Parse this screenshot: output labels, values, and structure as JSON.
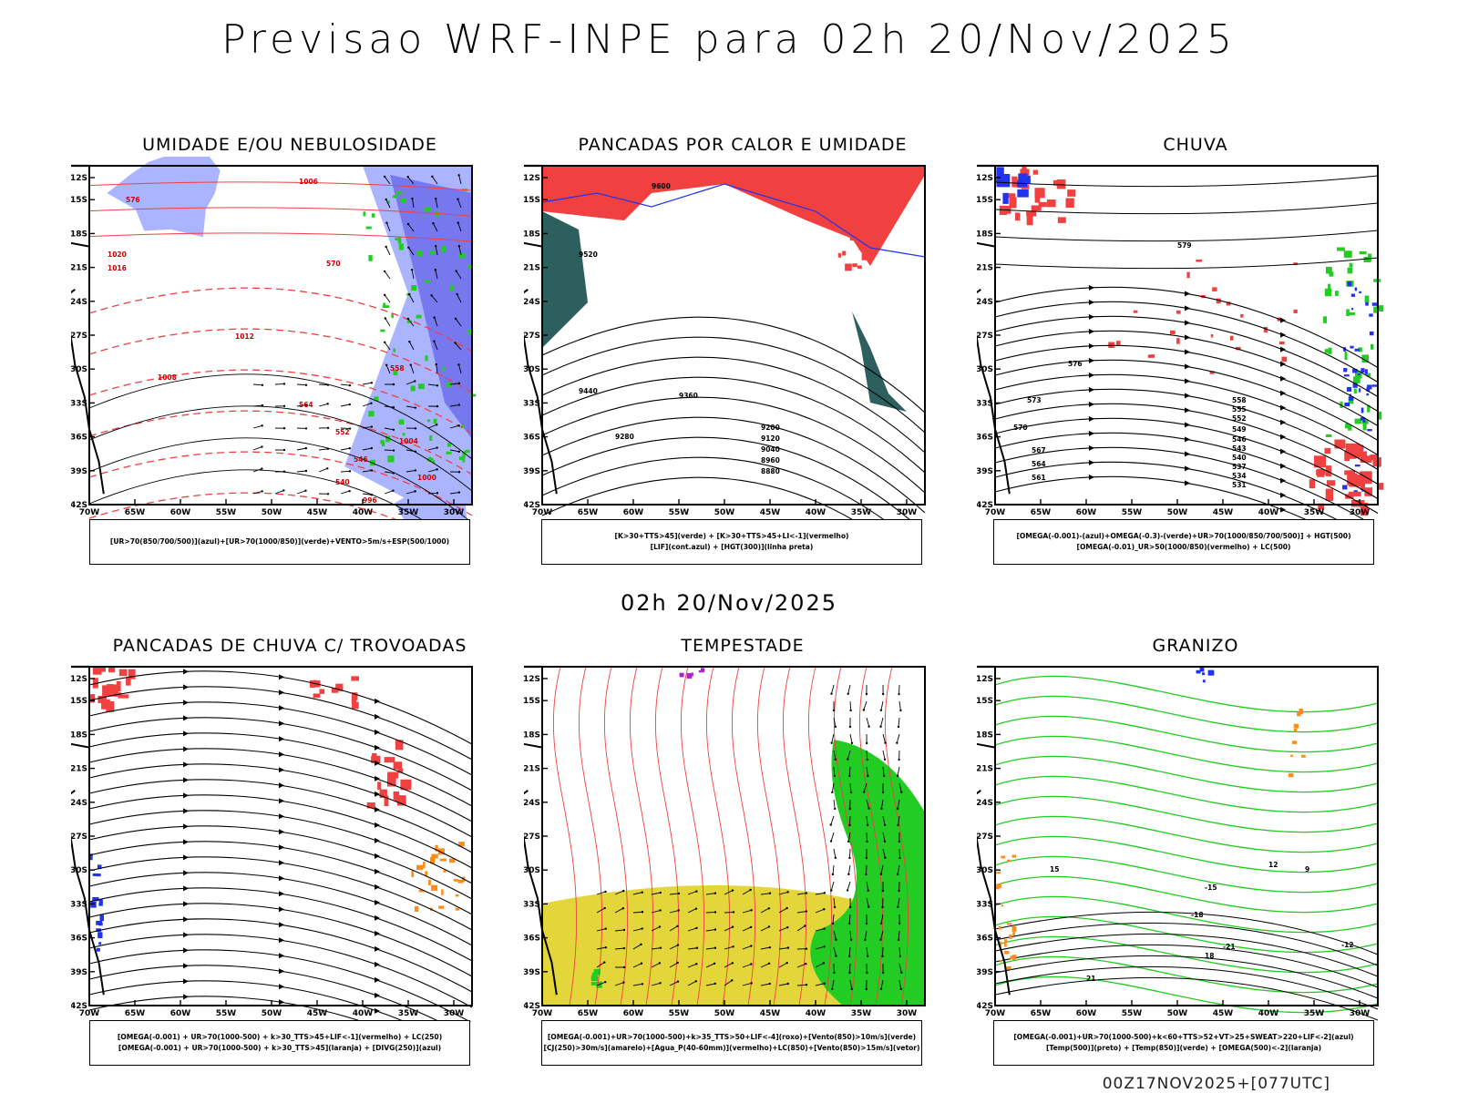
{
  "title": "Previsao WRF-INPE  para 02h 20/Nov/2025",
  "mid_title": "02h 20/Nov/2025",
  "footer": "00Z17NOV2025+[077UTC]",
  "axes": {
    "lat_labels": [
      "12S",
      "15S",
      "18S",
      "21S",
      "24S",
      "27S",
      "30S",
      "33S",
      "36S",
      "39S",
      "42S"
    ],
    "lon_labels": [
      "70W",
      "65W",
      "60W",
      "55W",
      "50W",
      "45W",
      "40W",
      "35W",
      "30W"
    ]
  },
  "colors": {
    "red": "#f04040",
    "green": "#22cc22",
    "blue": "#2233ee",
    "lightblue": "#aab4ff",
    "midblue": "#7777ee",
    "teal": "#2e5f5f",
    "yellow": "#e3d63a",
    "orange": "#ff8c1a",
    "purple": "#aa22cc"
  },
  "panels": [
    {
      "id": "umidade",
      "title": "UMIDADE E/OU NEBULOSIDADE",
      "legend": [
        "[UR>70(850/700/500)](azul)+[UR>70(1000/850)](verde)+VENTO>5m/s+ESP(500/1000)"
      ],
      "labels": [
        "1006",
        "1008",
        "1012",
        "570",
        "576",
        "558",
        "564",
        "552",
        "546",
        "540",
        "1004",
        "1000",
        "996",
        "1020",
        "1016"
      ]
    },
    {
      "id": "pancadas_calor",
      "title": "PANCADAS POR CALOR E UMIDADE",
      "legend": [
        "[K>30+TTS>45](verde) + [K>30+TTS>45+LI<-1](vermelho)",
        "[LIF](cont.azul) + [HGT(300)](linha preta)"
      ],
      "labels": [
        "9600",
        "9520",
        "9440",
        "9360",
        "9280",
        "9200",
        "9120",
        "9040",
        "8960",
        "8880"
      ]
    },
    {
      "id": "chuva",
      "title": "CHUVA",
      "legend": [
        "[OMEGA(-0.001)-(azul)+OMEGA(-0.3)-(verde)+UR>70(1000/850/700/500)] + HGT(500)",
        "[OMEGA(-0.01)_UR>50(1000/850)(vermelho) + LC(500)"
      ],
      "labels": [
        "579",
        "576",
        "573",
        "570",
        "567",
        "564",
        "561",
        "558",
        "555",
        "552",
        "549",
        "546",
        "543",
        "540",
        "537",
        "534",
        "531"
      ]
    },
    {
      "id": "trovoadas",
      "title": "PANCADAS DE CHUVA C/ TROVOADAS",
      "legend": [
        "[OMEGA(-0.001) + UR>70(1000-500) + k>30_TTS>45+LIF<-1](vermelho) + LC(250)",
        "[OMEGA(-0.001) + UR>70(1000-500) + k>30_TTS>45](laranja) + [DIVG(250)](azul)"
      ],
      "labels": []
    },
    {
      "id": "tempestade",
      "title": "TEMPESTADE",
      "legend": [
        "[OMEGA(-0.001)+UR>70(1000-500)+k>35_TTS>50+LIF<-4](roxo)+[Vento(850)>10m/s](verde)",
        "[CJ(250)>30m/s](amarelo)+[Agua_P(40-60mm)](vermelho)+LC(850)+[Vento(850)>15m/s](vetor)"
      ],
      "labels": []
    },
    {
      "id": "granizo",
      "title": "GRANIZO",
      "legend": [
        "[OMEGA(-0.001)+UR>70(1000-500)+k<60+TTS>52+VT>25+SWEAT>220+LIF<-2](azul)",
        "[Temp(500)](preto) + [Temp(850)](verde) + [OMEGA(500)<-2](laranja)"
      ],
      "labels": [
        "-12",
        "-15",
        "-18",
        "-21",
        "21",
        "18",
        "15",
        "12",
        "9"
      ]
    }
  ]
}
